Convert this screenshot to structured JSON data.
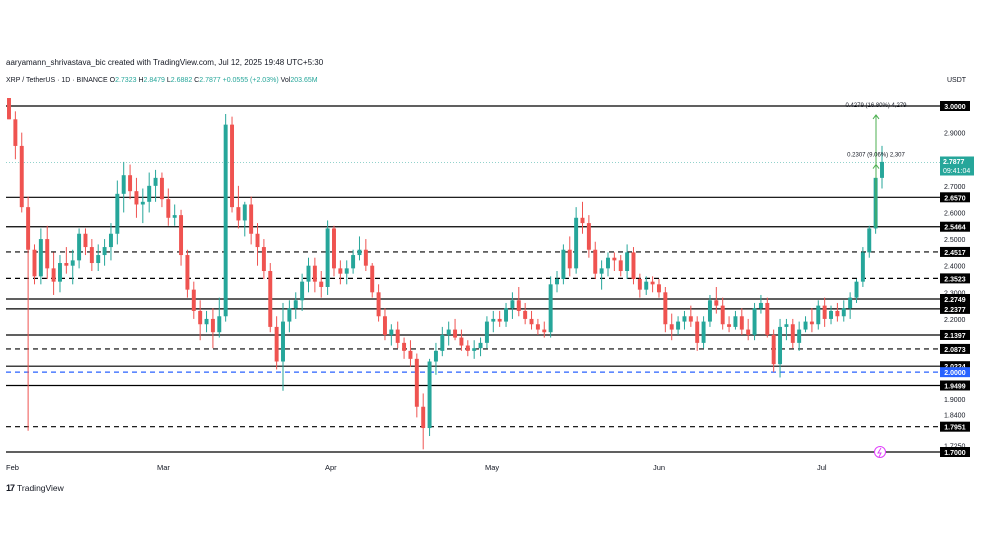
{
  "header": {
    "attribution": "aaryamann_shrivastava_bic created with TradingView.com, Jul 12, 2025 19:48 UTC+5:30"
  },
  "symbol": {
    "title": "XRP / TetherUS · 1D · BINANCE",
    "open_label": "O",
    "open": "2.7323",
    "high_label": "H",
    "high": "2.8479",
    "low_label": "L",
    "low": "2.6882",
    "close_label": "C",
    "close": "2.7877",
    "change": "+0.0555 (+2.03%)",
    "volume_label": "Vol",
    "volume": "203.65M"
  },
  "currency": "USDT",
  "branding": {
    "name": "TradingView"
  },
  "colors": {
    "up": "#26a69a",
    "down": "#ef5350",
    "line": "#000000",
    "blue_line": "#2962ff",
    "projection": "#4caf50",
    "current_price": "#26a69a"
  },
  "chart_data": {
    "type": "candlestick",
    "symbol": "XRP/USDT",
    "timeframe": "1D",
    "x_labels": [
      "Feb",
      "Mar",
      "Apr",
      "May",
      "Jun",
      "Jul"
    ],
    "ylim": [
      1.7,
      3.02
    ],
    "y_ticks": [
      "2.9000",
      "2.7000",
      "2.6000",
      "2.5000",
      "2.4000",
      "2.3000",
      "2.2000",
      "2.0900",
      "1.9000",
      "1.8400",
      "1.7250"
    ],
    "current_price": {
      "value": "2.7877",
      "countdown": "09:41:04"
    },
    "levels": [
      {
        "value": 3.0,
        "label": "3.0000",
        "style": "solid"
      },
      {
        "value": 2.657,
        "label": "2.6570",
        "style": "solid"
      },
      {
        "value": 2.5464,
        "label": "2.5464",
        "style": "solid"
      },
      {
        "value": 2.4517,
        "label": "2.4517",
        "style": "dashed"
      },
      {
        "value": 2.3523,
        "label": "2.3523",
        "style": "dashed"
      },
      {
        "value": 2.2749,
        "label": "2.2749",
        "style": "solid"
      },
      {
        "value": 2.2377,
        "label": "2.2377",
        "style": "solid"
      },
      {
        "value": 2.1397,
        "label": "2.1397",
        "style": "solid"
      },
      {
        "value": 2.0873,
        "label": "2.0873",
        "style": "dashed"
      },
      {
        "value": 2.0224,
        "label": "2.0224",
        "style": "solid"
      },
      {
        "value": 2.0,
        "label": "2.0000",
        "style": "blue"
      },
      {
        "value": 1.9499,
        "label": "1.9499",
        "style": "solid"
      },
      {
        "value": 1.7951,
        "label": "1.7951",
        "style": "dashed"
      },
      {
        "value": 1.7,
        "label": "1.7000",
        "style": "solid"
      }
    ],
    "annotations": [
      {
        "text": "0.4279 (16.80%) 4,279",
        "target": 2.9663
      },
      {
        "text": "0.2307 (9.06%) 2,307",
        "target": 2.78
      }
    ],
    "candles": [
      [
        3.05,
        3.1,
        2.95,
        2.95
      ],
      [
        2.95,
        2.98,
        2.8,
        2.85
      ],
      [
        2.85,
        2.9,
        2.6,
        2.62
      ],
      [
        2.62,
        2.66,
        1.78,
        2.46
      ],
      [
        2.46,
        2.48,
        2.33,
        2.36
      ],
      [
        2.36,
        2.54,
        2.33,
        2.5
      ],
      [
        2.5,
        2.55,
        2.35,
        2.39
      ],
      [
        2.39,
        2.45,
        2.29,
        2.34
      ],
      [
        2.34,
        2.44,
        2.3,
        2.41
      ],
      [
        2.41,
        2.47,
        2.37,
        2.4
      ],
      [
        2.4,
        2.46,
        2.33,
        2.42
      ],
      [
        2.42,
        2.54,
        2.39,
        2.52
      ],
      [
        2.52,
        2.54,
        2.44,
        2.47
      ],
      [
        2.47,
        2.5,
        2.38,
        2.41
      ],
      [
        2.41,
        2.48,
        2.38,
        2.44
      ],
      [
        2.44,
        2.5,
        2.4,
        2.47
      ],
      [
        2.47,
        2.56,
        2.42,
        2.52
      ],
      [
        2.52,
        2.72,
        2.48,
        2.67
      ],
      [
        2.67,
        2.79,
        2.6,
        2.74
      ],
      [
        2.74,
        2.78,
        2.65,
        2.68
      ],
      [
        2.68,
        2.73,
        2.58,
        2.63
      ],
      [
        2.63,
        2.69,
        2.56,
        2.64
      ],
      [
        2.64,
        2.75,
        2.6,
        2.7
      ],
      [
        2.7,
        2.76,
        2.64,
        2.73
      ],
      [
        2.73,
        2.75,
        2.62,
        2.65
      ],
      [
        2.65,
        2.69,
        2.55,
        2.58
      ],
      [
        2.58,
        2.63,
        2.55,
        2.59
      ],
      [
        2.59,
        2.61,
        2.4,
        2.44
      ],
      [
        2.44,
        2.46,
        2.28,
        2.31
      ],
      [
        2.31,
        2.34,
        2.2,
        2.23
      ],
      [
        2.23,
        2.27,
        2.12,
        2.18
      ],
      [
        2.18,
        2.23,
        2.15,
        2.2
      ],
      [
        2.2,
        2.24,
        2.09,
        2.15
      ],
      [
        2.15,
        2.28,
        2.13,
        2.21
      ],
      [
        2.21,
        2.97,
        2.19,
        2.93
      ],
      [
        2.93,
        2.96,
        2.6,
        2.62
      ],
      [
        2.62,
        2.7,
        2.54,
        2.57
      ],
      [
        2.57,
        2.64,
        2.51,
        2.63
      ],
      [
        2.63,
        2.66,
        2.48,
        2.52
      ],
      [
        2.52,
        2.56,
        2.4,
        2.47
      ],
      [
        2.47,
        2.5,
        2.35,
        2.38
      ],
      [
        2.38,
        2.41,
        2.15,
        2.17
      ],
      [
        2.17,
        2.21,
        2.01,
        2.04
      ],
      [
        2.04,
        2.26,
        1.93,
        2.19
      ],
      [
        2.19,
        2.27,
        2.15,
        2.24
      ],
      [
        2.24,
        2.3,
        2.2,
        2.27
      ],
      [
        2.27,
        2.37,
        2.23,
        2.34
      ],
      [
        2.34,
        2.43,
        2.3,
        2.4
      ],
      [
        2.4,
        2.43,
        2.3,
        2.34
      ],
      [
        2.34,
        2.38,
        2.28,
        2.32
      ],
      [
        2.32,
        2.57,
        2.29,
        2.54
      ],
      [
        2.54,
        2.55,
        2.36,
        2.39
      ],
      [
        2.39,
        2.42,
        2.33,
        2.37
      ],
      [
        2.37,
        2.42,
        2.33,
        2.39
      ],
      [
        2.39,
        2.46,
        2.37,
        2.44
      ],
      [
        2.44,
        2.51,
        2.42,
        2.46
      ],
      [
        2.46,
        2.5,
        2.38,
        2.4
      ],
      [
        2.4,
        2.41,
        2.28,
        2.3
      ],
      [
        2.3,
        2.33,
        2.19,
        2.21
      ],
      [
        2.21,
        2.24,
        2.12,
        2.14
      ],
      [
        2.14,
        2.18,
        2.1,
        2.16
      ],
      [
        2.16,
        2.19,
        2.09,
        2.11
      ],
      [
        2.11,
        2.13,
        2.05,
        2.08
      ],
      [
        2.08,
        2.12,
        2.02,
        2.05
      ],
      [
        2.05,
        2.07,
        1.83,
        1.87
      ],
      [
        1.87,
        1.92,
        1.71,
        1.79
      ],
      [
        1.79,
        2.05,
        1.76,
        2.04
      ],
      [
        2.04,
        2.11,
        1.99,
        2.08
      ],
      [
        2.08,
        2.17,
        2.06,
        2.14
      ],
      [
        2.14,
        2.19,
        2.1,
        2.16
      ],
      [
        2.16,
        2.2,
        2.12,
        2.13
      ],
      [
        2.13,
        2.16,
        2.08,
        2.1
      ],
      [
        2.1,
        2.12,
        2.06,
        2.08
      ],
      [
        2.08,
        2.12,
        2.05,
        2.09
      ],
      [
        2.09,
        2.13,
        2.06,
        2.11
      ],
      [
        2.11,
        2.21,
        2.09,
        2.19
      ],
      [
        2.19,
        2.23,
        2.15,
        2.2
      ],
      [
        2.2,
        2.23,
        2.17,
        2.19
      ],
      [
        2.19,
        2.26,
        2.17,
        2.24
      ],
      [
        2.24,
        2.3,
        2.2,
        2.27
      ],
      [
        2.27,
        2.32,
        2.21,
        2.23
      ],
      [
        2.23,
        2.26,
        2.18,
        2.2
      ],
      [
        2.2,
        2.23,
        2.16,
        2.18
      ],
      [
        2.18,
        2.2,
        2.14,
        2.16
      ],
      [
        2.16,
        2.19,
        2.13,
        2.15
      ],
      [
        2.15,
        2.36,
        2.13,
        2.33
      ],
      [
        2.33,
        2.38,
        2.3,
        2.35
      ],
      [
        2.35,
        2.48,
        2.33,
        2.46
      ],
      [
        2.46,
        2.51,
        2.36,
        2.39
      ],
      [
        2.39,
        2.62,
        2.37,
        2.58
      ],
      [
        2.58,
        2.64,
        2.52,
        2.56
      ],
      [
        2.56,
        2.59,
        2.43,
        2.46
      ],
      [
        2.46,
        2.49,
        2.35,
        2.37
      ],
      [
        2.37,
        2.42,
        2.31,
        2.39
      ],
      [
        2.39,
        2.45,
        2.36,
        2.43
      ],
      [
        2.43,
        2.45,
        2.38,
        2.42
      ],
      [
        2.42,
        2.44,
        2.36,
        2.38
      ],
      [
        2.38,
        2.48,
        2.35,
        2.45
      ],
      [
        2.45,
        2.47,
        2.33,
        2.35
      ],
      [
        2.35,
        2.37,
        2.28,
        2.31
      ],
      [
        2.31,
        2.36,
        2.29,
        2.34
      ],
      [
        2.34,
        2.36,
        2.3,
        2.33
      ],
      [
        2.33,
        2.35,
        2.28,
        2.3
      ],
      [
        2.3,
        2.32,
        2.15,
        2.18
      ],
      [
        2.18,
        2.22,
        2.12,
        2.16
      ],
      [
        2.16,
        2.21,
        2.14,
        2.19
      ],
      [
        2.19,
        2.23,
        2.16,
        2.21
      ],
      [
        2.21,
        2.25,
        2.17,
        2.19
      ],
      [
        2.19,
        2.21,
        2.08,
        2.11
      ],
      [
        2.11,
        2.21,
        2.09,
        2.19
      ],
      [
        2.19,
        2.29,
        2.17,
        2.27
      ],
      [
        2.27,
        2.32,
        2.22,
        2.25
      ],
      [
        2.25,
        2.28,
        2.16,
        2.18
      ],
      [
        2.18,
        2.21,
        2.15,
        2.17
      ],
      [
        2.17,
        2.23,
        2.16,
        2.21
      ],
      [
        2.21,
        2.24,
        2.14,
        2.16
      ],
      [
        2.16,
        2.2,
        2.12,
        2.14
      ],
      [
        2.14,
        2.26,
        2.12,
        2.24
      ],
      [
        2.24,
        2.29,
        2.22,
        2.26
      ],
      [
        2.26,
        2.28,
        2.13,
        2.14
      ],
      [
        2.14,
        2.16,
        2.0,
        2.03
      ],
      [
        2.03,
        2.2,
        1.98,
        2.17
      ],
      [
        2.17,
        2.2,
        2.12,
        2.18
      ],
      [
        2.18,
        2.2,
        2.09,
        2.11
      ],
      [
        2.11,
        2.19,
        2.08,
        2.16
      ],
      [
        2.16,
        2.21,
        2.15,
        2.19
      ],
      [
        2.19,
        2.24,
        2.15,
        2.18
      ],
      [
        2.18,
        2.27,
        2.16,
        2.25
      ],
      [
        2.25,
        2.28,
        2.17,
        2.2
      ],
      [
        2.2,
        2.25,
        2.18,
        2.23
      ],
      [
        2.23,
        2.26,
        2.19,
        2.21
      ],
      [
        2.21,
        2.27,
        2.19,
        2.24
      ],
      [
        2.24,
        2.3,
        2.2,
        2.28
      ],
      [
        2.28,
        2.35,
        2.26,
        2.34
      ],
      [
        2.34,
        2.47,
        2.32,
        2.45
      ],
      [
        2.45,
        2.55,
        2.43,
        2.54
      ],
      [
        2.54,
        2.73,
        2.52,
        2.73
      ],
      [
        2.73,
        2.85,
        2.69,
        2.79
      ]
    ]
  }
}
